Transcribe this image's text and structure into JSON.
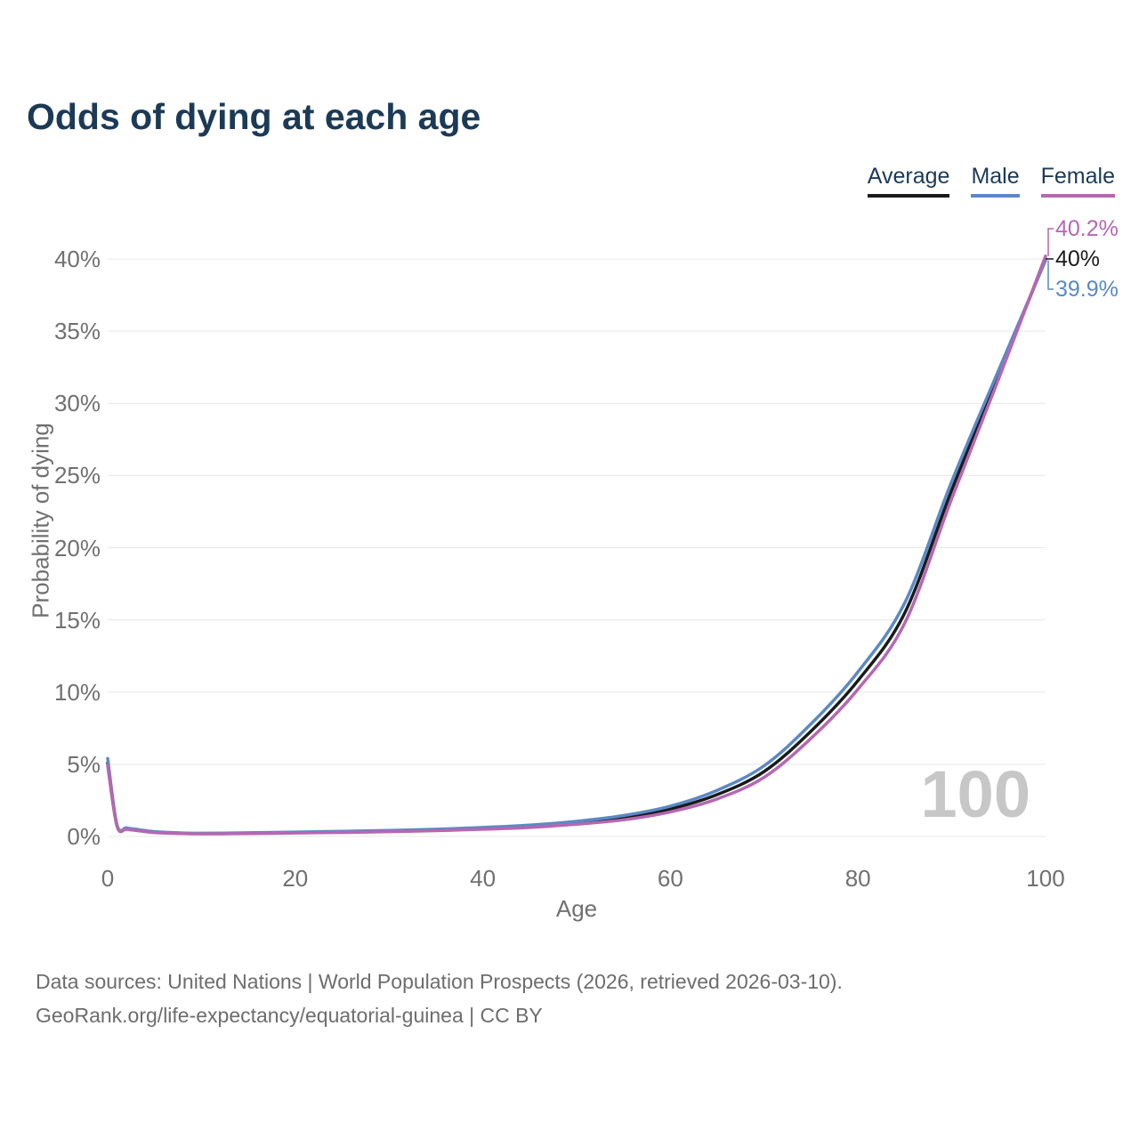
{
  "title": "Odds of dying at each age",
  "chart_data": {
    "type": "line",
    "title": "Odds of dying at each age",
    "xlabel": "Age",
    "ylabel": "Probability of dying",
    "xlim": [
      0,
      100
    ],
    "ylim": [
      0,
      40
    ],
    "xticks": [
      0,
      20,
      40,
      60,
      80,
      100
    ],
    "yticks": [
      0,
      5,
      10,
      15,
      20,
      25,
      30,
      35,
      40
    ],
    "ytick_suffix": "%",
    "grid": "horizontal",
    "legend_position": "top-right",
    "watermark": "100",
    "x": [
      0,
      1,
      2,
      3,
      5,
      8,
      10,
      15,
      20,
      25,
      30,
      35,
      40,
      45,
      50,
      55,
      60,
      65,
      70,
      75,
      80,
      85,
      90,
      95,
      100
    ],
    "series": [
      {
        "name": "Average",
        "color": "#1a1a1a",
        "end_label": "40%",
        "values": [
          5.1,
          0.75,
          0.55,
          0.45,
          0.3,
          0.22,
          0.2,
          0.22,
          0.27,
          0.32,
          0.38,
          0.45,
          0.55,
          0.7,
          0.95,
          1.3,
          1.9,
          2.9,
          4.5,
          7.3,
          10.8,
          15.5,
          24,
          32,
          40
        ]
      },
      {
        "name": "Male",
        "color": "#5b89c4",
        "end_label": "39.9%",
        "values": [
          5.4,
          0.8,
          0.6,
          0.5,
          0.33,
          0.24,
          0.22,
          0.25,
          0.3,
          0.36,
          0.42,
          0.5,
          0.62,
          0.78,
          1.05,
          1.45,
          2.1,
          3.2,
          4.9,
          7.8,
          11.4,
          16.2,
          24.6,
          32.3,
          39.9
        ]
      },
      {
        "name": "Female",
        "color": "#b667b2",
        "end_label": "40.2%",
        "values": [
          4.9,
          0.7,
          0.5,
          0.42,
          0.27,
          0.2,
          0.18,
          0.2,
          0.24,
          0.28,
          0.33,
          0.4,
          0.5,
          0.62,
          0.85,
          1.15,
          1.7,
          2.6,
          4.1,
          6.8,
          10.2,
          14.8,
          23.4,
          31.7,
          40.2
        ]
      }
    ]
  },
  "colors": {
    "title_text": "#1b3a57",
    "legend_text": "#1c3a57",
    "tick_text": "#707070",
    "gridline": "#e8e8e8",
    "watermark": "#c7c7c7",
    "footer_text": "#6d6d6d"
  },
  "footer": {
    "line1": "Data sources: United Nations | World Population Prospects (2026, retrieved 2026-03-10).",
    "line2": "GeoRank.org/life-expectancy/equatorial-guinea | CC BY"
  }
}
